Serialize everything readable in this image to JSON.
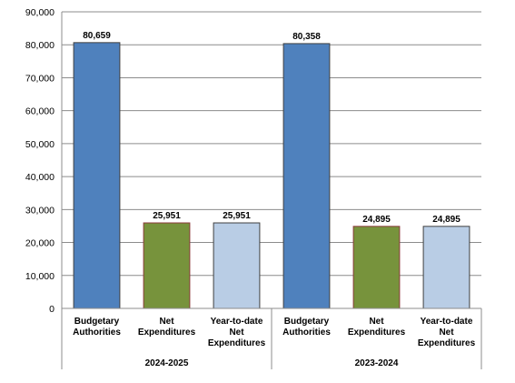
{
  "chart_data": {
    "type": "bar",
    "ylim": [
      0,
      90000
    ],
    "yticks": [
      "0",
      "10,000",
      "20,000",
      "30,000",
      "40,000",
      "50,000",
      "60,000",
      "70,000",
      "80,000",
      "90,000"
    ],
    "ytick_values": [
      0,
      10000,
      20000,
      30000,
      40000,
      50000,
      60000,
      70000,
      80000,
      90000
    ],
    "grid": true,
    "groups": [
      {
        "name": "2024-2025",
        "bars": [
          {
            "category": "Budgetary Authorities",
            "value": 80659,
            "label": "80,659",
            "color": "#4f81bd"
          },
          {
            "category": "Net Expenditures",
            "value": 25951,
            "label": "25,951",
            "color": "#77933c"
          },
          {
            "category": "Year-to-date Net Expenditures",
            "value": 25951,
            "label": "25,951",
            "color": "#b9cde5"
          }
        ]
      },
      {
        "name": "2023-2024",
        "bars": [
          {
            "category": "Budgetary Authorities",
            "value": 80358,
            "label": "80,358",
            "color": "#4f81bd"
          },
          {
            "category": "Net Expenditures",
            "value": 24895,
            "label": "24,895",
            "color": "#77933c"
          },
          {
            "category": "Year-to-date Net Expenditures",
            "value": 24895,
            "label": "24,895",
            "color": "#b9cde5"
          }
        ]
      }
    ]
  }
}
